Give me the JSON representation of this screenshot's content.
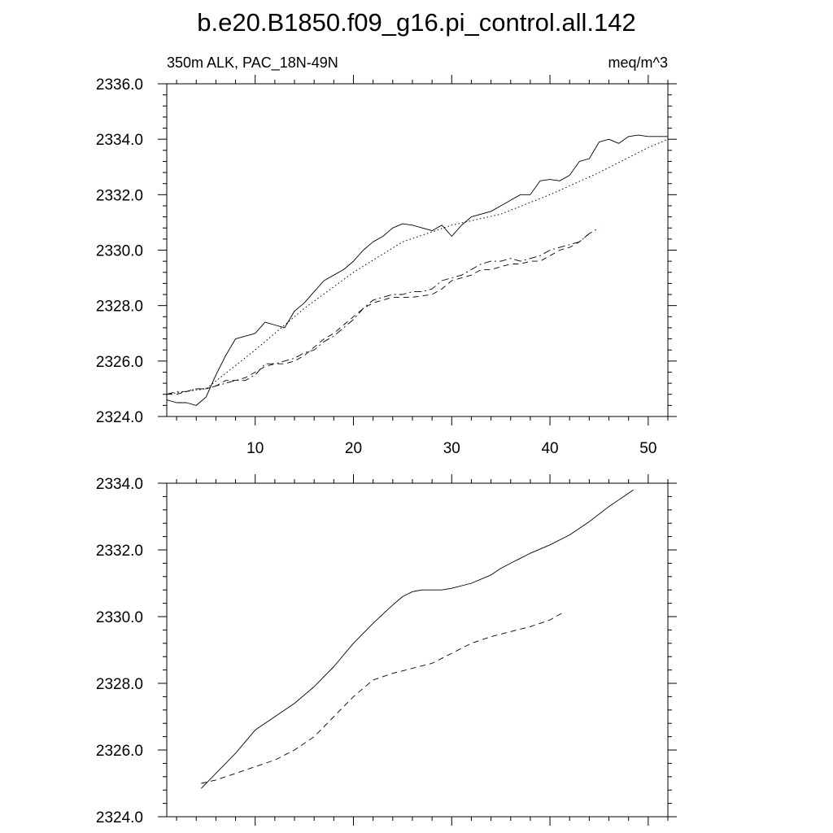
{
  "figure": {
    "title": "b.e20.B1850.f09_g16.pi_control.all.142",
    "subtitle_left": "350m ALK, PAC_18N-49N",
    "subtitle_right": "meq/m^3"
  },
  "chart_data": [
    {
      "type": "line",
      "title": "",
      "xlabel": "",
      "ylabel": "",
      "xlim": [
        1,
        52
      ],
      "ylim": [
        2324,
        2336
      ],
      "x_ticks": [
        10,
        20,
        30,
        40,
        50
      ],
      "y_ticks": [
        2324,
        2326,
        2328,
        2330,
        2332,
        2334,
        2336
      ],
      "y_tick_labels": [
        "2324.0",
        "2326.0",
        "2328.0",
        "2330.0",
        "2332.0",
        "2334.0",
        "2336.0"
      ],
      "show_x_tick_labels": true,
      "grid": false,
      "series": [
        {
          "style": "solid",
          "x": [
            1,
            2,
            3,
            4,
            5,
            6,
            7,
            8,
            9,
            10,
            11,
            12,
            13,
            14,
            15,
            16,
            17,
            18,
            19,
            20,
            21,
            22,
            23,
            24,
            25,
            26,
            27,
            28,
            29,
            30,
            31,
            32,
            33,
            34,
            35,
            36,
            37,
            38,
            39,
            40,
            41,
            42,
            43,
            44,
            45,
            46,
            47,
            48,
            49,
            50,
            51,
            52
          ],
          "y": [
            2324.6,
            2324.5,
            2324.5,
            2324.4,
            2324.7,
            2325.5,
            2326.2,
            2326.8,
            2326.9,
            2327.0,
            2327.4,
            2327.3,
            2327.2,
            2327.8,
            2328.1,
            2328.5,
            2328.9,
            2329.1,
            2329.3,
            2329.6,
            2330.0,
            2330.3,
            2330.5,
            2330.8,
            2330.95,
            2330.9,
            2330.8,
            2330.7,
            2330.9,
            2330.5,
            2330.9,
            2331.2,
            2331.3,
            2331.4,
            2331.6,
            2331.8,
            2332.0,
            2332.0,
            2332.5,
            2332.55,
            2332.5,
            2332.7,
            2333.2,
            2333.3,
            2333.9,
            2334.0,
            2333.85,
            2334.1,
            2334.15,
            2334.1,
            2334.1,
            2334.1
          ]
        },
        {
          "style": "dotted",
          "x": [
            1,
            5,
            10,
            15,
            20,
            25,
            30,
            35,
            40,
            45,
            50,
            52
          ],
          "y": [
            2324.8,
            2325.0,
            2326.4,
            2327.9,
            2329.2,
            2330.3,
            2330.9,
            2331.3,
            2332.0,
            2332.8,
            2333.7,
            2334.0
          ]
        },
        {
          "style": "dashed",
          "x": [
            1,
            2,
            3,
            4,
            5,
            6,
            7,
            8,
            9,
            10,
            11,
            12,
            13,
            14,
            15,
            16,
            17,
            18,
            19,
            20,
            21,
            22,
            23,
            24,
            25,
            26,
            27,
            28,
            29,
            30,
            31,
            32,
            33,
            34,
            35,
            36,
            37,
            38,
            39,
            40,
            41,
            42,
            43,
            44
          ],
          "y": [
            2324.8,
            2324.8,
            2324.9,
            2325.0,
            2325.0,
            2325.1,
            2325.3,
            2325.3,
            2325.4,
            2325.6,
            2325.8,
            2325.9,
            2325.9,
            2326.0,
            2326.2,
            2326.5,
            2326.8,
            2327.0,
            2327.3,
            2327.6,
            2327.9,
            2328.1,
            2328.2,
            2328.3,
            2328.3,
            2328.3,
            2328.35,
            2328.4,
            2328.6,
            2328.9,
            2329.0,
            2329.1,
            2329.3,
            2329.3,
            2329.4,
            2329.5,
            2329.5,
            2329.6,
            2329.6,
            2329.8,
            2330.0,
            2330.1,
            2330.3,
            2330.6
          ]
        },
        {
          "style": "dashdot",
          "x": [
            1,
            2,
            3,
            4,
            5,
            6,
            7,
            8,
            9,
            10,
            11,
            12,
            13,
            14,
            15,
            16,
            17,
            18,
            19,
            20,
            21,
            22,
            23,
            24,
            25,
            26,
            27,
            28,
            29,
            30,
            31,
            32,
            33,
            34,
            35,
            36,
            37,
            38,
            39,
            40,
            41,
            42,
            43,
            44,
            45
          ],
          "y": [
            2324.8,
            2324.9,
            2324.9,
            2325.0,
            2325.0,
            2325.1,
            2325.2,
            2325.3,
            2325.3,
            2325.5,
            2325.9,
            2325.9,
            2326.0,
            2326.1,
            2326.3,
            2326.4,
            2326.7,
            2326.9,
            2327.2,
            2327.5,
            2327.9,
            2328.2,
            2328.3,
            2328.4,
            2328.4,
            2328.5,
            2328.5,
            2328.6,
            2328.9,
            2329.0,
            2329.1,
            2329.3,
            2329.5,
            2329.6,
            2329.6,
            2329.7,
            2329.6,
            2329.7,
            2329.8,
            2330.0,
            2330.1,
            2330.2,
            2330.3,
            2330.6,
            2330.8
          ]
        }
      ]
    },
    {
      "type": "line",
      "title": "",
      "xlabel": "",
      "ylabel": "",
      "xlim": [
        1,
        52
      ],
      "ylim": [
        2324,
        2334
      ],
      "x_ticks": [
        10,
        20,
        30,
        40,
        50
      ],
      "y_ticks": [
        2324,
        2326,
        2328,
        2330,
        2332,
        2334
      ],
      "y_tick_labels": [
        "2324.0",
        "2326.0",
        "2328.0",
        "2330.0",
        "2332.0",
        "2334.0"
      ],
      "show_x_tick_labels": false,
      "grid": false,
      "series": [
        {
          "style": "solid",
          "x": [
            4.5,
            6,
            8,
            10,
            12,
            14,
            16,
            18,
            20,
            22,
            24,
            25,
            26,
            27,
            28,
            29,
            30,
            32,
            34,
            35,
            36,
            38,
            40,
            42,
            44,
            46,
            48.5
          ],
          "y": [
            2324.85,
            2325.3,
            2325.9,
            2326.6,
            2327.0,
            2327.4,
            2327.9,
            2328.5,
            2329.2,
            2329.8,
            2330.35,
            2330.6,
            2330.75,
            2330.8,
            2330.8,
            2330.8,
            2330.85,
            2331.0,
            2331.25,
            2331.45,
            2331.6,
            2331.9,
            2332.15,
            2332.45,
            2332.85,
            2333.3,
            2333.8
          ]
        },
        {
          "style": "dashed",
          "x": [
            4.5,
            6,
            8,
            10,
            12,
            14,
            16,
            18,
            20,
            22,
            23,
            24,
            26,
            28,
            30,
            32,
            34,
            36,
            38,
            40,
            41.5
          ],
          "y": [
            2325.0,
            2325.1,
            2325.3,
            2325.5,
            2325.7,
            2326.0,
            2326.4,
            2327.0,
            2327.6,
            2328.1,
            2328.2,
            2328.3,
            2328.45,
            2328.6,
            2328.9,
            2329.2,
            2329.4,
            2329.55,
            2329.7,
            2329.9,
            2330.15
          ]
        }
      ]
    }
  ]
}
